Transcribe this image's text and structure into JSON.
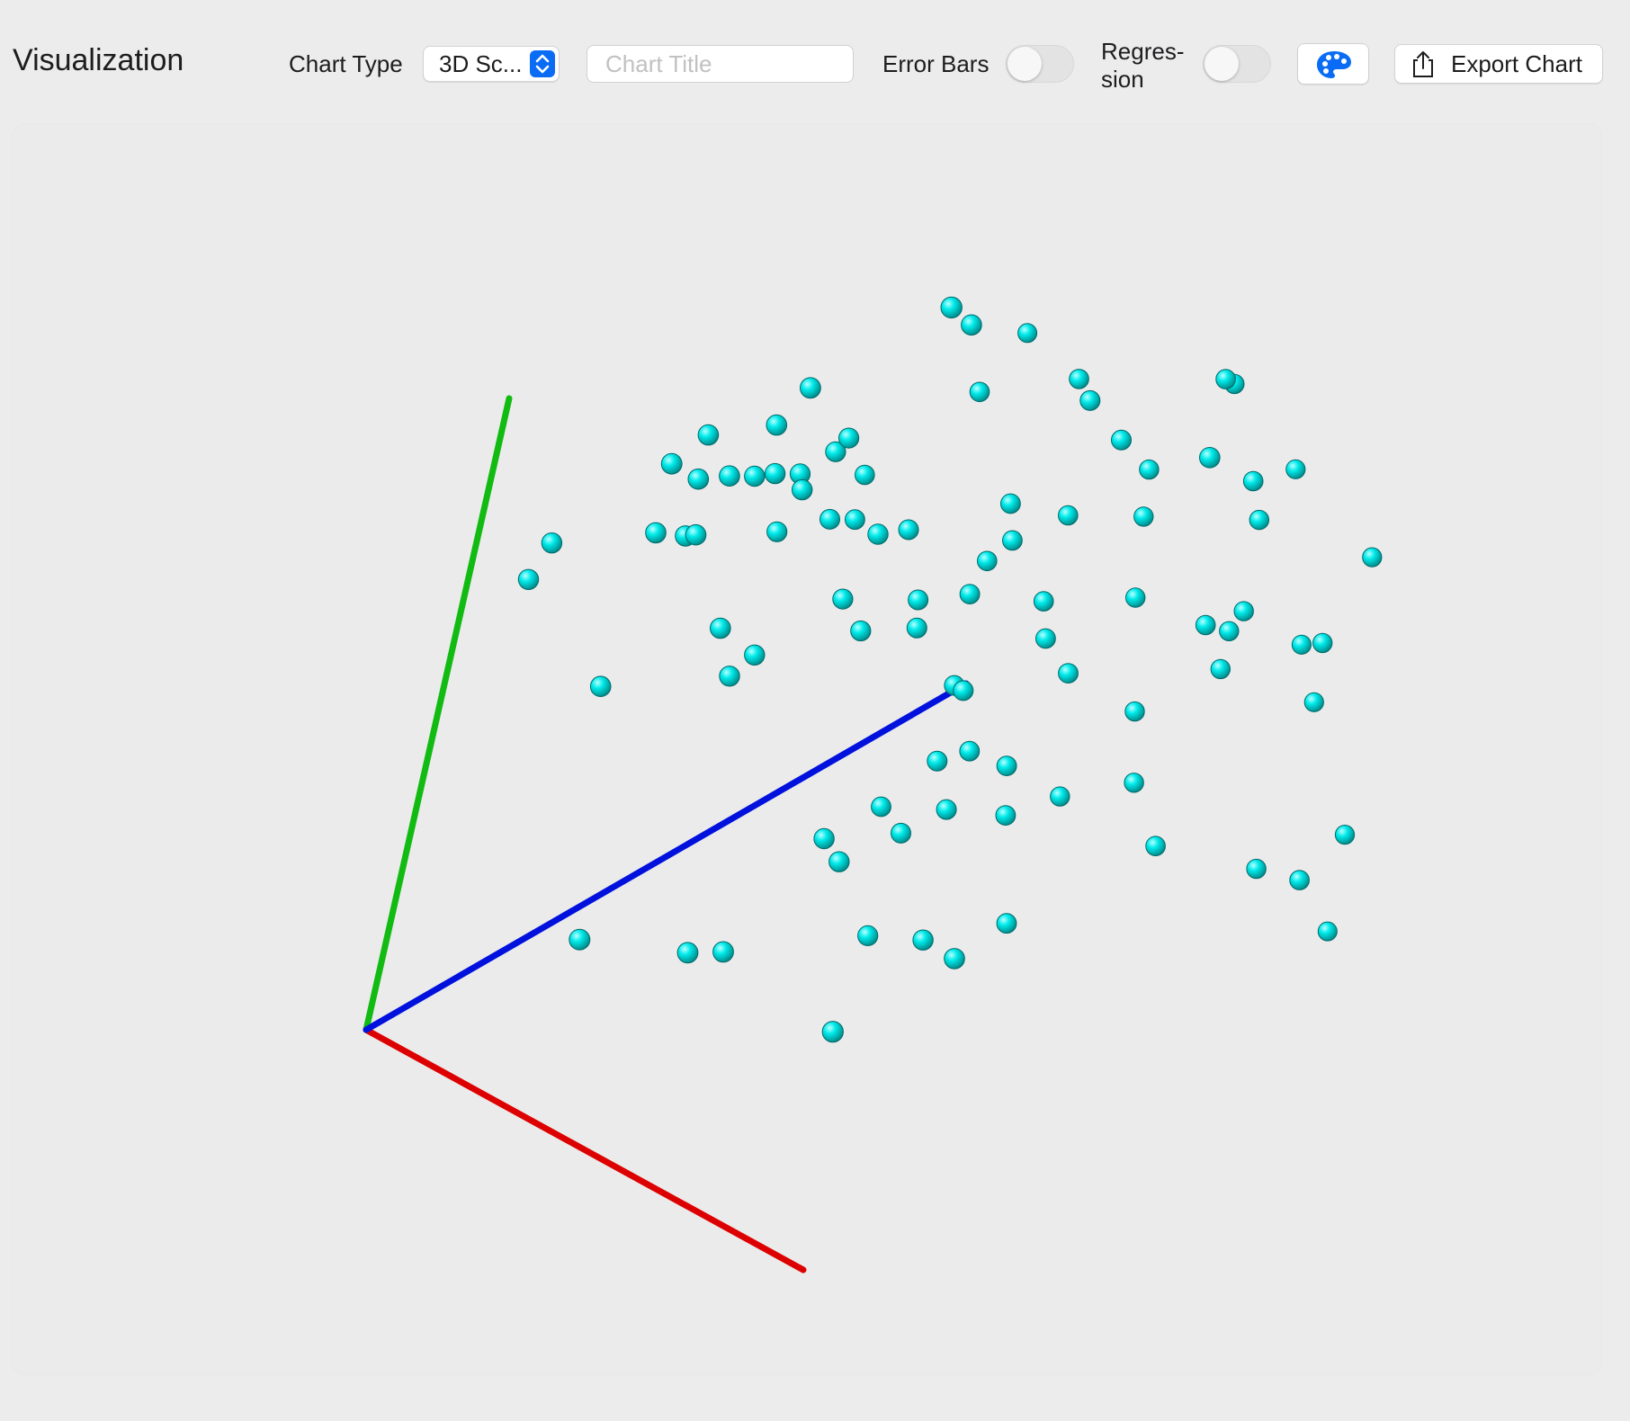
{
  "app": {
    "title": "Visualization"
  },
  "toolbar": {
    "chart_type_label": "Chart Type",
    "chart_type_value": "3D Sc...",
    "chart_title_placeholder": "Chart Title",
    "chart_title_value": "",
    "error_bars_label": "Error Bars",
    "error_bars_on": false,
    "regression_label": "Regres-\nsion",
    "regression_on": false,
    "palette_icon": "palette-icon",
    "export_icon": "share-icon",
    "export_label": "Export Chart"
  },
  "colors": {
    "accent": "#0a6cf5",
    "point": "#00e6e6",
    "axis_x": "#dd0000",
    "axis_y": "#11bb11",
    "axis_z": "#0011dd"
  },
  "chart_data": {
    "type": "scatter",
    "projection": "3d",
    "title": "",
    "axes": [
      "x",
      "y",
      "z"
    ],
    "grid": false,
    "legend": "none",
    "points": [
      {
        "x": 0.43,
        "y": 0.96,
        "z": 0.56
      },
      {
        "x": 0.27,
        "y": 0.89,
        "z": 0.6
      },
      {
        "x": 0.2,
        "y": 0.88,
        "z": 0.62
      },
      {
        "x": 0.45,
        "y": 0.84,
        "z": 0.66
      },
      {
        "x": 0.36,
        "y": 0.84,
        "z": 0.56
      },
      {
        "x": 0.12,
        "y": 0.81,
        "z": 0.46
      },
      {
        "x": 0.44,
        "y": 0.78,
        "z": 0.7
      },
      {
        "x": 0.6,
        "y": 0.82,
        "z": 0.8
      },
      {
        "x": 0.62,
        "y": 0.82,
        "z": 0.8
      },
      {
        "x": 0.49,
        "y": 0.72,
        "z": 0.73
      },
      {
        "x": 0.56,
        "y": 0.7,
        "z": 0.73
      },
      {
        "x": 0.72,
        "y": 0.69,
        "z": 0.86
      },
      {
        "x": 0.04,
        "y": 0.76,
        "z": 0.36
      },
      {
        "x": 0.1,
        "y": 0.76,
        "z": 0.43
      },
      {
        "x": 0.19,
        "y": 0.73,
        "z": 0.47
      },
      {
        "x": 0.2,
        "y": 0.75,
        "z": 0.48
      },
      {
        "x": 0.0,
        "y": 0.71,
        "z": 0.34
      },
      {
        "x": 0.04,
        "y": 0.69,
        "z": 0.36
      },
      {
        "x": 0.07,
        "y": 0.69,
        "z": 0.39
      },
      {
        "x": 0.1,
        "y": 0.69,
        "z": 0.41
      },
      {
        "x": 0.13,
        "y": 0.7,
        "z": 0.42
      },
      {
        "x": 0.16,
        "y": 0.7,
        "z": 0.44
      },
      {
        "x": 0.15,
        "y": 0.66,
        "z": 0.46
      },
      {
        "x": 0.26,
        "y": 0.72,
        "z": 0.47
      },
      {
        "x": 0.54,
        "y": 0.64,
        "z": 0.86
      },
      {
        "x": 0.65,
        "y": 0.65,
        "z": 0.85
      },
      {
        "x": 0.15,
        "y": 0.61,
        "z": 0.43
      },
      {
        "x": 0.22,
        "y": 0.64,
        "z": 0.46
      },
      {
        "x": 0.25,
        "y": 0.64,
        "z": 0.48
      },
      {
        "x": 0.3,
        "y": 0.61,
        "z": 0.54
      },
      {
        "x": 0.4,
        "y": 0.64,
        "z": 0.63
      },
      {
        "x": 0.48,
        "y": 0.63,
        "z": 0.67
      },
      {
        "x": 0.56,
        "y": 0.62,
        "z": 0.74
      },
      {
        "x": 0.68,
        "y": 0.6,
        "z": 0.85
      },
      {
        "x": -0.08,
        "y": 0.62,
        "z": 0.22
      },
      {
        "x": -0.1,
        "y": 0.56,
        "z": 0.21
      },
      {
        "x": 0.01,
        "y": 0.61,
        "z": 0.33
      },
      {
        "x": 0.04,
        "y": 0.6,
        "z": 0.36
      },
      {
        "x": 0.05,
        "y": 0.6,
        "z": 0.37
      },
      {
        "x": 0.24,
        "y": 0.58,
        "z": 0.54
      },
      {
        "x": 0.41,
        "y": 0.58,
        "z": 0.64
      },
      {
        "x": 0.4,
        "y": 0.56,
        "z": 0.61
      },
      {
        "x": 0.81,
        "y": 0.53,
        "z": 0.96
      },
      {
        "x": 0.23,
        "y": 0.49,
        "z": 0.51
      },
      {
        "x": 0.32,
        "y": 0.49,
        "z": 0.57
      },
      {
        "x": 0.38,
        "y": 0.5,
        "z": 0.61
      },
      {
        "x": 0.47,
        "y": 0.49,
        "z": 0.67
      },
      {
        "x": 0.57,
        "y": 0.49,
        "z": 0.75
      },
      {
        "x": 0.68,
        "y": 0.45,
        "z": 0.86
      },
      {
        "x": 0.76,
        "y": 0.4,
        "z": 0.91
      },
      {
        "x": 0.09,
        "y": 0.44,
        "z": 0.42
      },
      {
        "x": 0.26,
        "y": 0.44,
        "z": 0.53
      },
      {
        "x": 0.32,
        "y": 0.44,
        "z": 0.58
      },
      {
        "x": 0.47,
        "y": 0.42,
        "z": 0.69
      },
      {
        "x": 0.63,
        "y": 0.42,
        "z": 0.84
      },
      {
        "x": 0.67,
        "y": 0.42,
        "z": 0.85
      },
      {
        "x": 0.77,
        "y": 0.39,
        "z": 0.94
      },
      {
        "x": 0.14,
        "y": 0.4,
        "z": 0.45
      },
      {
        "x": -0.01,
        "y": 0.37,
        "z": 0.31
      },
      {
        "x": 0.12,
        "y": 0.37,
        "z": 0.43
      },
      {
        "x": 0.38,
        "y": 0.35,
        "z": 0.62
      },
      {
        "x": 0.39,
        "y": 0.34,
        "z": 0.63
      },
      {
        "x": 0.5,
        "y": 0.36,
        "z": 0.72
      },
      {
        "x": 0.6,
        "y": 0.31,
        "z": 0.77
      },
      {
        "x": 0.67,
        "y": 0.36,
        "z": 0.85
      },
      {
        "x": 0.78,
        "y": 0.3,
        "z": 0.94
      },
      {
        "x": 0.38,
        "y": 0.23,
        "z": 0.62
      },
      {
        "x": 0.34,
        "y": 0.17,
        "z": 0.57
      },
      {
        "x": 0.47,
        "y": 0.14,
        "z": 0.69
      },
      {
        "x": 0.4,
        "y": 0.15,
        "z": 0.64
      },
      {
        "x": 0.42,
        "y": 0.25,
        "z": 0.64
      },
      {
        "x": 0.46,
        "y": 0.22,
        "z": 0.68
      },
      {
        "x": 0.54,
        "y": 0.18,
        "z": 0.72
      },
      {
        "x": 0.61,
        "y": 0.19,
        "z": 0.79
      },
      {
        "x": 0.63,
        "y": 0.07,
        "z": 0.84
      },
      {
        "x": 0.75,
        "y": 0.03,
        "z": 0.93
      },
      {
        "x": 0.84,
        "y": 0.08,
        "z": 1.0
      },
      {
        "x": 0.26,
        "y": 0.1,
        "z": 0.55
      },
      {
        "x": 0.28,
        "y": 0.06,
        "z": 0.57
      },
      {
        "x": 0.35,
        "y": 0.11,
        "z": 0.61
      },
      {
        "x": 0.49,
        "y": -0.04,
        "z": 0.72
      },
      {
        "x": 0.79,
        "y": 0.0,
        "z": 0.98
      },
      {
        "x": 0.86,
        "y": -0.06,
        "z": 0.99
      },
      {
        "x": 0.12,
        "y": -0.09,
        "z": 0.47
      },
      {
        "x": 0.16,
        "y": -0.09,
        "z": 0.5
      },
      {
        "x": 0.0,
        "y": -0.06,
        "z": 0.37
      },
      {
        "x": 0.33,
        "y": -0.06,
        "z": 0.61
      },
      {
        "x": 0.37,
        "y": -0.09,
        "z": 0.68
      },
      {
        "x": 0.4,
        "y": -0.13,
        "z": 0.72
      },
      {
        "x": 0.25,
        "y": -0.27,
        "z": 0.66
      }
    ]
  }
}
